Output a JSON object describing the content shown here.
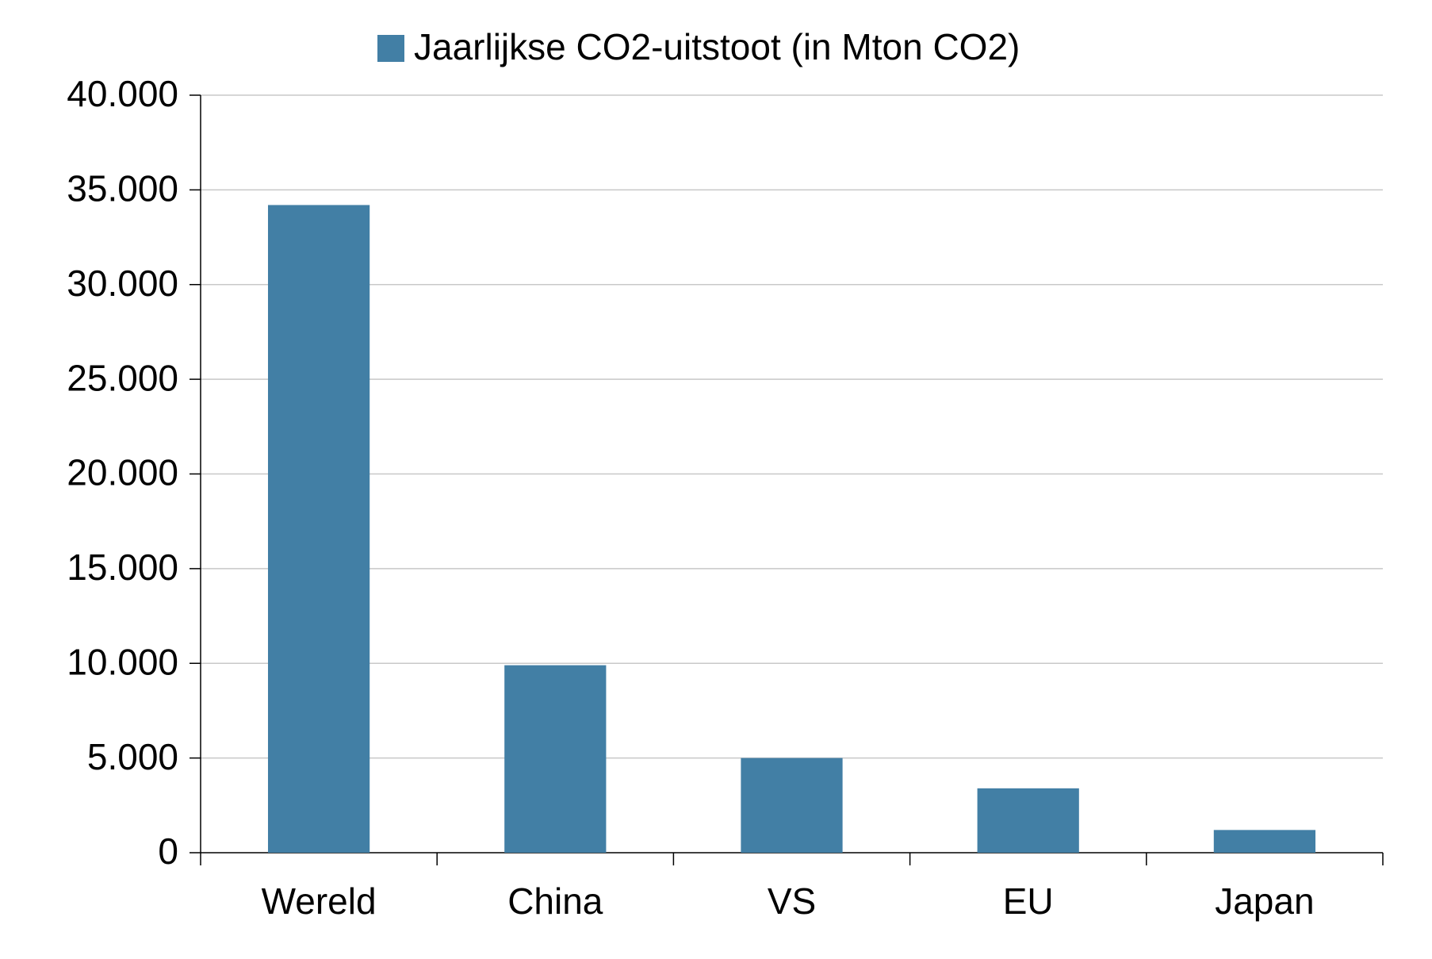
{
  "chart_data": {
    "type": "bar",
    "categories": [
      "Wereld",
      "China",
      "VS",
      "EU",
      "Japan"
    ],
    "series": [
      {
        "name": "Jaarlijkse CO2-uitstoot (in Mton CO2)",
        "color": "#427fa5",
        "values": [
          34200,
          9900,
          5000,
          3400,
          1200
        ]
      }
    ],
    "ylim": [
      0,
      40000
    ],
    "yticks": [
      0,
      {
        "value": 5000,
        "label": "5.000"
      },
      {
        "value": 10000,
        "label": "10.000"
      },
      {
        "value": 15000,
        "label": "15.000"
      },
      {
        "value": 20000,
        "label": "20.000"
      },
      {
        "value": 25000,
        "label": "25.000"
      },
      {
        "value": 30000,
        "label": "30.000"
      },
      {
        "value": 35000,
        "label": "35.000"
      },
      {
        "value": 40000,
        "label": "40.000"
      }
    ],
    "grid": true,
    "legend": "top"
  }
}
